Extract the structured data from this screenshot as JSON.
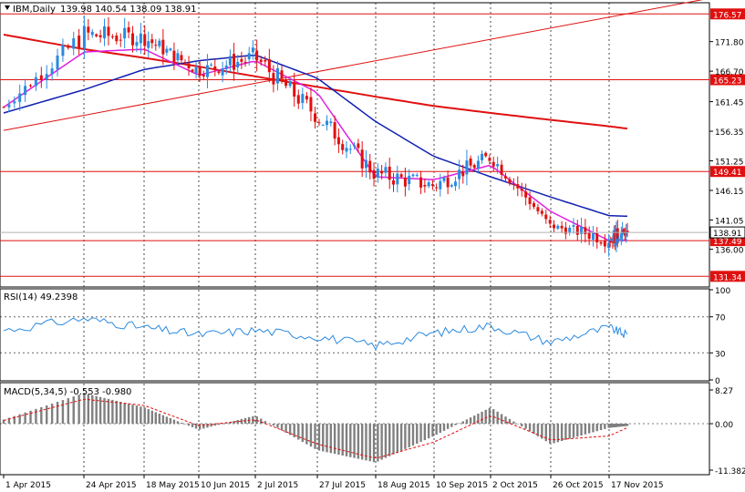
{
  "colors": {
    "background": "#ffffff",
    "bull": "#2a8ae0",
    "bear": "#e01010",
    "ma_fast": "#e020e0",
    "ma_mid": "#1020b0",
    "ma_slow": "#e01010",
    "level_line": "#e01010",
    "trend_line": "#e01010",
    "rsi_line": "#2a8ae0",
    "macd_hist": "#808080",
    "macd_signal": "#e01010",
    "grid": "#000000",
    "badge_text": "#ffffff",
    "price_badge": "#ffffff"
  },
  "main": {
    "title": "IBM,Daily",
    "ohlc": "139.98 140.54 138.09 138.91",
    "current_price": "138.91",
    "y_ticks": [
      "171.80",
      "166.70",
      "161.45",
      "156.35",
      "151.25",
      "146.15",
      "141.05",
      "136.00",
      "131.34"
    ],
    "levels": [
      "176.57",
      "165.23",
      "149.41",
      "137.49",
      "131.34"
    ]
  },
  "rsi": {
    "title": "RSI(14) 49.2398",
    "y_ticks": [
      "100",
      "70",
      "30",
      "0"
    ]
  },
  "macd": {
    "title": "MACD(5,34,5) -0.553 -0.980",
    "y_ticks": [
      "8.27",
      "0.00",
      "-11.382"
    ]
  },
  "x_labels": [
    "1 Apr 2015",
    "24 Apr 2015",
    "18 May 2015",
    "10 Jun 2015",
    "2 Jul 2015",
    "27 Jul 2015",
    "18 Aug 2015",
    "10 Sep 2015",
    "2 Oct 2015",
    "26 Oct 2015",
    "17 Nov 2015"
  ],
  "chart_data": {
    "type": "candlestick",
    "symbol": "IBM",
    "timeframe": "Daily",
    "ylim": [
      129.5,
      178.5
    ],
    "x": [
      "1 Apr 2015",
      "24 Apr 2015",
      "18 May 2015",
      "10 Jun 2015",
      "2 Jul 2015",
      "27 Jul 2015",
      "18 Aug 2015",
      "10 Sep 2015",
      "2 Oct 2015",
      "26 Oct 2015",
      "17 Nov 2015",
      "24 Nov 2015"
    ],
    "close": [
      160.5,
      173.0,
      172.5,
      166.8,
      169.0,
      159.0,
      149.0,
      147.0,
      152.0,
      140.0,
      138.0,
      138.91
    ],
    "high": [
      162.5,
      176.0,
      175.0,
      168.5,
      173.5,
      165.0,
      151.0,
      150.0,
      153.5,
      141.0,
      141.5,
      140.54
    ],
    "low": [
      159.0,
      165.0,
      167.0,
      162.0,
      162.5,
      155.5,
      141.5,
      141.0,
      146.0,
      138.0,
      131.5,
      138.09
    ],
    "ma_fast": [
      160.5,
      170.0,
      170.5,
      166.0,
      168.5,
      163.0,
      148.5,
      148.0,
      150.5,
      142.5,
      137.5,
      137.6
    ],
    "ma_mid": [
      159.5,
      163.5,
      167.0,
      168.5,
      169.5,
      165.5,
      158.0,
      152.0,
      148.5,
      145.0,
      141.8,
      141.7
    ],
    "ma_slow": [
      173.0,
      170.5,
      169.0,
      167.5,
      165.8,
      164.0,
      162.3,
      160.7,
      159.5,
      158.3,
      157.2,
      156.8
    ],
    "h_levels": [
      176.57,
      165.23,
      149.41,
      137.49,
      131.34
    ],
    "trend_line": {
      "from": {
        "x": "1 Apr 2015",
        "y": 156.5
      },
      "to": {
        "x": "24 Nov 2015",
        "y": 178.0
      }
    },
    "rsi": {
      "ylim": [
        0,
        100
      ],
      "levels": [
        70,
        30
      ],
      "values": [
        55,
        68,
        58,
        50,
        55,
        48,
        38,
        52,
        60,
        42,
        58,
        49.24
      ]
    },
    "macd": {
      "ylim": [
        -11.382,
        8.27
      ],
      "hist": [
        1.0,
        7.5,
        4.0,
        -1.5,
        2.0,
        -6.5,
        -9.5,
        -3.0,
        4.0,
        -5.0,
        -1.0,
        -0.553
      ],
      "signal": [
        0.8,
        6.0,
        4.5,
        -0.5,
        1.0,
        -5.0,
        -8.5,
        -4.5,
        2.0,
        -4.0,
        -3.0,
        -0.98
      ]
    }
  }
}
